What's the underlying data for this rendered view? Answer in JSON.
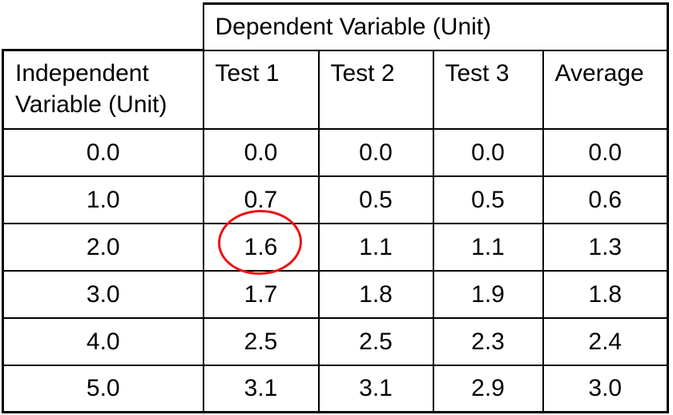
{
  "table": {
    "group_header": "Dependent Variable (Unit)",
    "row_header": "Independent Variable (Unit)",
    "columns": [
      "Test 1",
      "Test 2",
      "Test 3",
      "Average"
    ],
    "rows": [
      {
        "x": "0.0",
        "values": [
          "0.0",
          "0.0",
          "0.0",
          "0.0"
        ]
      },
      {
        "x": "1.0",
        "values": [
          "0.7",
          "0.5",
          "0.5",
          "0.6"
        ]
      },
      {
        "x": "2.0",
        "values": [
          "1.6",
          "1.1",
          "1.1",
          "1.3"
        ]
      },
      {
        "x": "3.0",
        "values": [
          "1.7",
          "1.8",
          "1.9",
          "1.8"
        ]
      },
      {
        "x": "4.0",
        "values": [
          "2.5",
          "2.5",
          "2.3",
          "2.4"
        ]
      },
      {
        "x": "5.0",
        "values": [
          "3.1",
          "3.1",
          "2.9",
          "3.0"
        ]
      }
    ],
    "annotation": {
      "shape": "ellipse",
      "circled_value": "1.6",
      "row": "2.0",
      "column": "Test 1",
      "color": "#ee1111"
    },
    "border_color": "#000000",
    "background_color": "#ffffff"
  },
  "chart_data": {
    "type": "table",
    "title": "",
    "column_group_header": "Dependent Variable (Unit)",
    "row_header": "Independent Variable (Unit)",
    "x": [
      0.0,
      1.0,
      2.0,
      3.0,
      4.0,
      5.0
    ],
    "series": [
      {
        "name": "Test 1",
        "values": [
          0.0,
          0.7,
          1.6,
          1.7,
          2.5,
          3.1
        ]
      },
      {
        "name": "Test 2",
        "values": [
          0.0,
          0.5,
          1.1,
          1.8,
          2.5,
          3.1
        ]
      },
      {
        "name": "Test 3",
        "values": [
          0.0,
          0.5,
          1.1,
          1.9,
          2.3,
          2.9
        ]
      },
      {
        "name": "Average",
        "values": [
          0.0,
          0.6,
          1.3,
          1.8,
          2.4,
          3.0
        ]
      }
    ],
    "annotations": [
      {
        "shape": "ellipse",
        "target_series": "Test 1",
        "target_x": 2.0,
        "value": 1.6,
        "color": "#ee1111"
      }
    ]
  }
}
